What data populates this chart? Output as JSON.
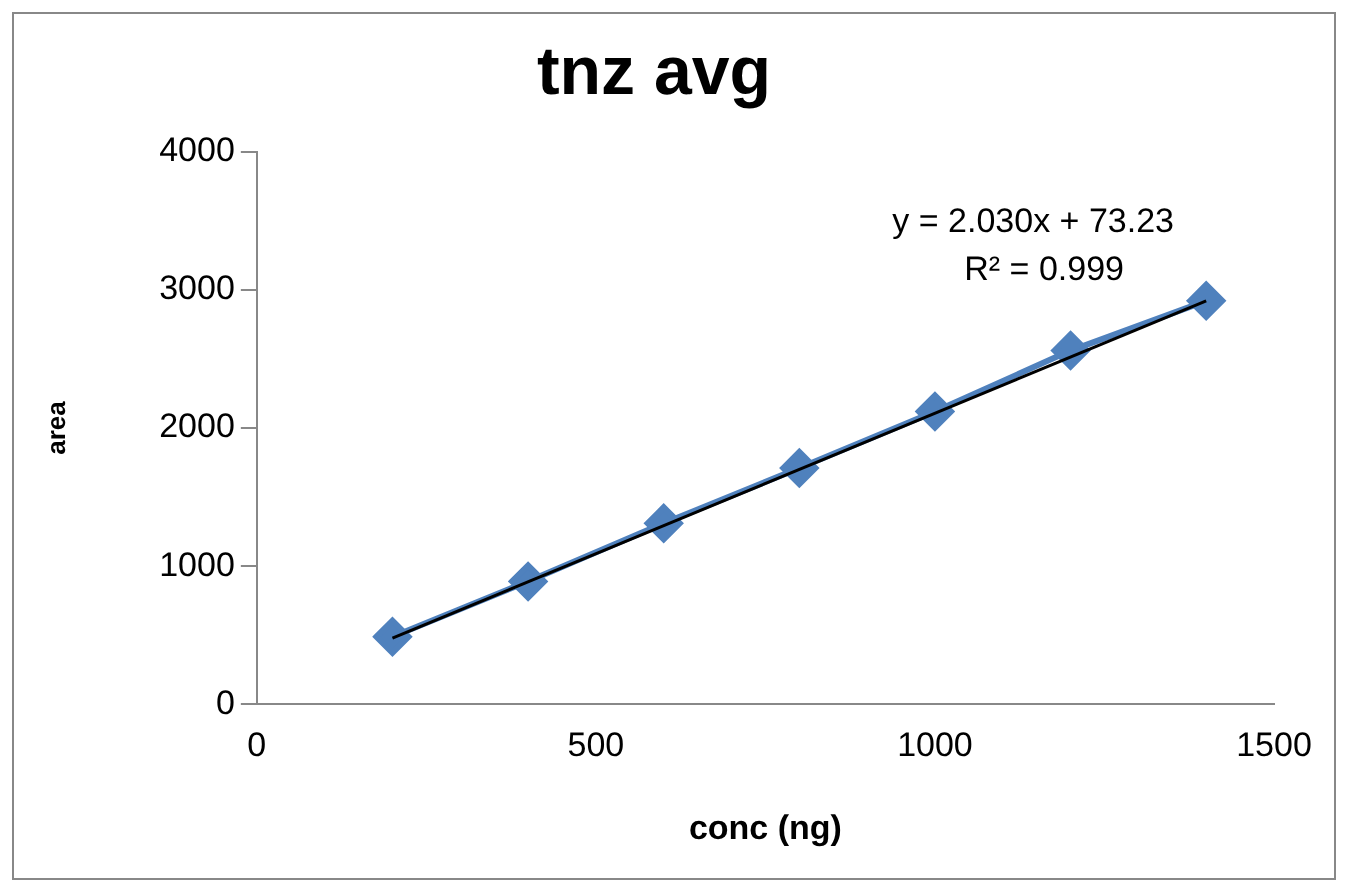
{
  "chart_data": {
    "type": "line",
    "title": "tnz avg",
    "xlabel": "conc (ng)",
    "ylabel": "area",
    "x": [
      200,
      400,
      600,
      800,
      1000,
      1200,
      1400
    ],
    "series": [
      {
        "color": "#4f81bd",
        "values": [
          490,
          890,
          1310,
          1710,
          2120,
          2560,
          2920
        ],
        "marker": "diamond"
      },
      {
        "type": "line",
        "color": "#000000",
        "x": [
          200,
          1400
        ],
        "values": [
          480,
          2920
        ],
        "marker": "none"
      }
    ],
    "annotations": [
      "y = 2.030x + 73.23",
      "R² = 0.999"
    ],
    "xlim": [
      0,
      1500
    ],
    "xticks": [
      0,
      500,
      1000,
      1500
    ],
    "ylim": [
      0,
      4000
    ],
    "yticks": [
      0,
      1000,
      2000,
      3000,
      4000
    ],
    "grid": false,
    "legend": false
  }
}
